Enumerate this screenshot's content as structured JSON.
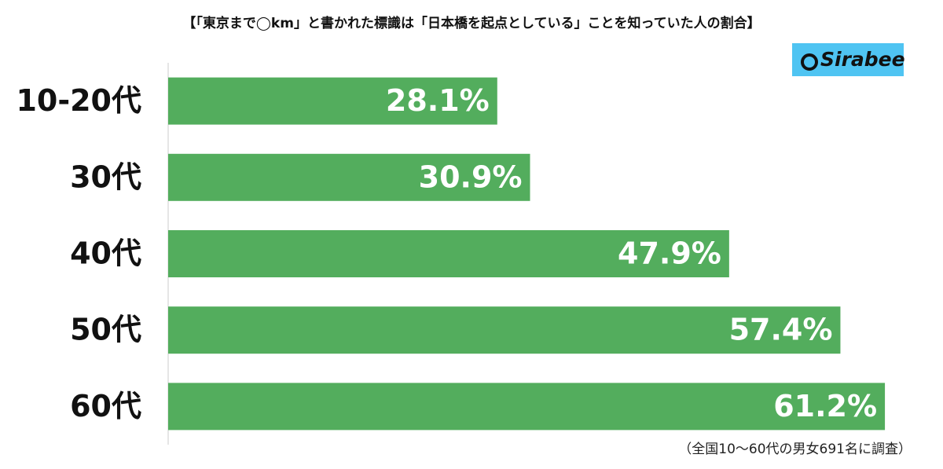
{
  "chart_data": {
    "type": "hbar",
    "title": "【「東京まで◯km」と書かれた標識は「日本橋を起点としている」ことを知っていた人の割合】",
    "categories": [
      "10-20代",
      "30代",
      "40代",
      "50代",
      "60代"
    ],
    "values": [
      28.1,
      30.9,
      47.9,
      57.4,
      61.2
    ],
    "value_labels": [
      "28.1%",
      "30.9%",
      "47.9%",
      "57.4%",
      "61.2%"
    ],
    "color": "#53ad5d",
    "xlim": [
      0,
      62
    ],
    "note": "（全国10～60代の男女691名に調査）",
    "logo": "Sirabee"
  }
}
